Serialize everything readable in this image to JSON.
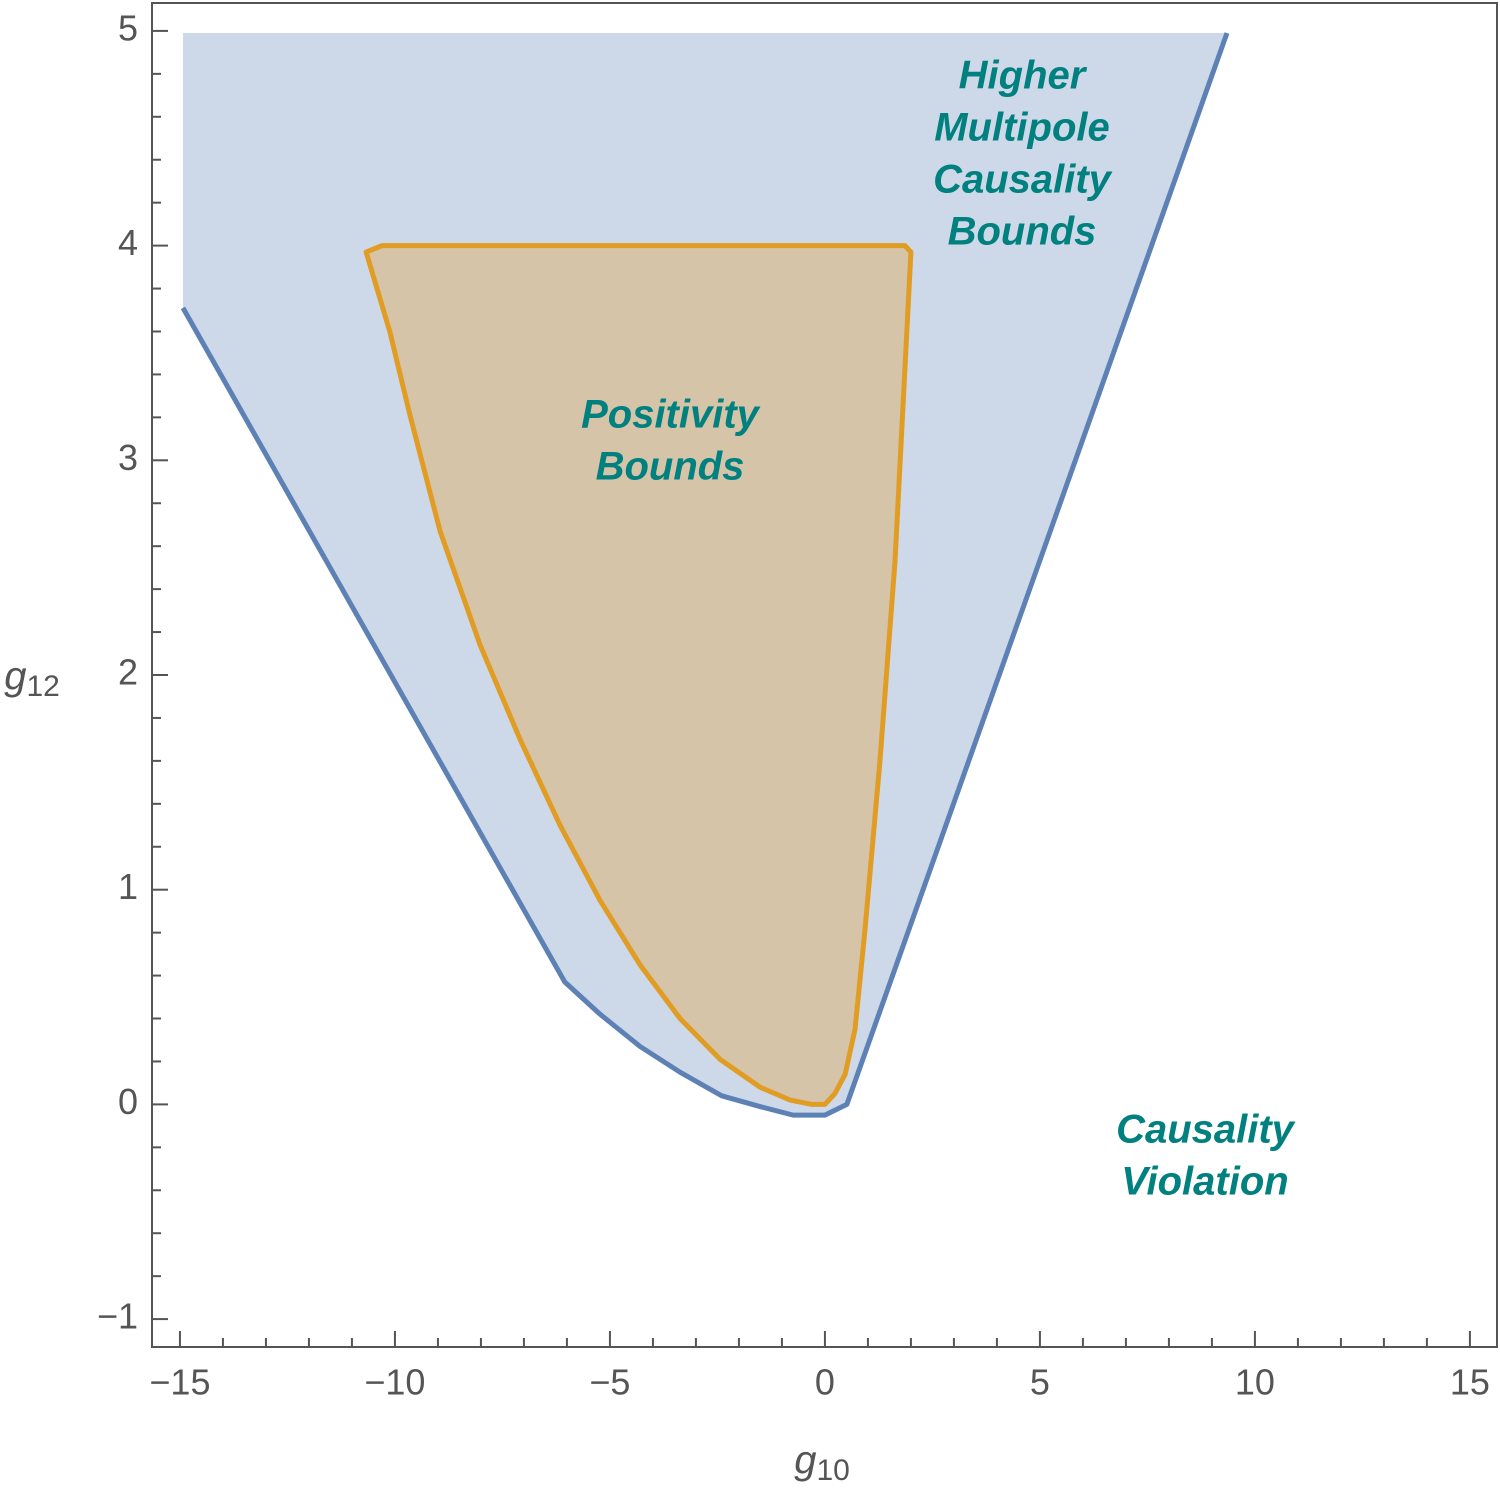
{
  "chart_data": {
    "type": "region",
    "xlabel": {
      "text": "g",
      "subscript": "10"
    },
    "ylabel": {
      "text": "g",
      "subscript": "12"
    },
    "xlim": [
      -15.65,
      15.63
    ],
    "ylim": [
      -1.13,
      5.13
    ],
    "xticks": [
      {
        "value": -15,
        "label": "−15"
      },
      {
        "value": -10,
        "label": "−10"
      },
      {
        "value": -5,
        "label": "−5"
      },
      0,
      5,
      10,
      15
    ],
    "yticks": [
      {
        "value": -1,
        "label": "−1"
      },
      0,
      1,
      2,
      3,
      4,
      5
    ],
    "xminorticks": [
      -14,
      -13,
      -12,
      -11,
      -9,
      -8,
      -7,
      -6,
      -4,
      -3,
      -2,
      -1,
      1,
      2,
      3,
      4,
      6,
      7,
      8,
      9,
      11,
      12,
      13,
      14
    ],
    "yminorticks": [
      -0.8,
      -0.6,
      -0.4,
      -0.2,
      0.2,
      0.4,
      0.6,
      0.8,
      1.2,
      1.4,
      1.6,
      1.8,
      2.2,
      2.4,
      2.6,
      2.8,
      3.2,
      3.4,
      3.6,
      3.8,
      4.2,
      4.4,
      4.6,
      4.8
    ],
    "series": [
      {
        "color": "#5e81b5",
        "fill": "#cdd9e9",
        "open_corner": true,
        "x": [
          -14.93,
          -6.05,
          -5.23,
          -4.3,
          -3.37,
          -2.4,
          -1.51,
          -0.74,
          0,
          0.51,
          9.35
        ],
        "y": [
          3.71,
          0.57,
          0.42,
          0.27,
          0.15,
          0.04,
          -0.01,
          -0.05,
          -0.05,
          0,
          4.99
        ]
      },
      {
        "color": "#e19c24",
        "fill": "#d5c4a8",
        "open_corner": false,
        "x": [
          -10.67,
          -10.3,
          1.86,
          2.0,
          1.63,
          1.28,
          0.93,
          0.7,
          0.47,
          0.23,
          0,
          -0.3,
          -0.81,
          -1.51,
          -2.44,
          -3.37,
          -4.3,
          -5.23,
          -6.16,
          -7.09,
          -8.02,
          -8.95,
          -9.65,
          -10.12
        ],
        "y": [
          3.97,
          4.0,
          4.0,
          3.97,
          2.53,
          1.6,
          0.81,
          0.35,
          0.14,
          0.05,
          0,
          0,
          0.02,
          0.08,
          0.21,
          0.4,
          0.65,
          0.95,
          1.3,
          1.7,
          2.14,
          2.67,
          3.21,
          3.6
        ]
      }
    ],
    "annotations": [
      {
        "lines": [
          "Higher",
          "Multipole",
          "Causality",
          "Bounds"
        ]
      },
      {
        "lines": [
          "Positivity",
          "Bounds"
        ]
      },
      {
        "lines": [
          "Causality",
          "Violation"
        ]
      }
    ]
  }
}
